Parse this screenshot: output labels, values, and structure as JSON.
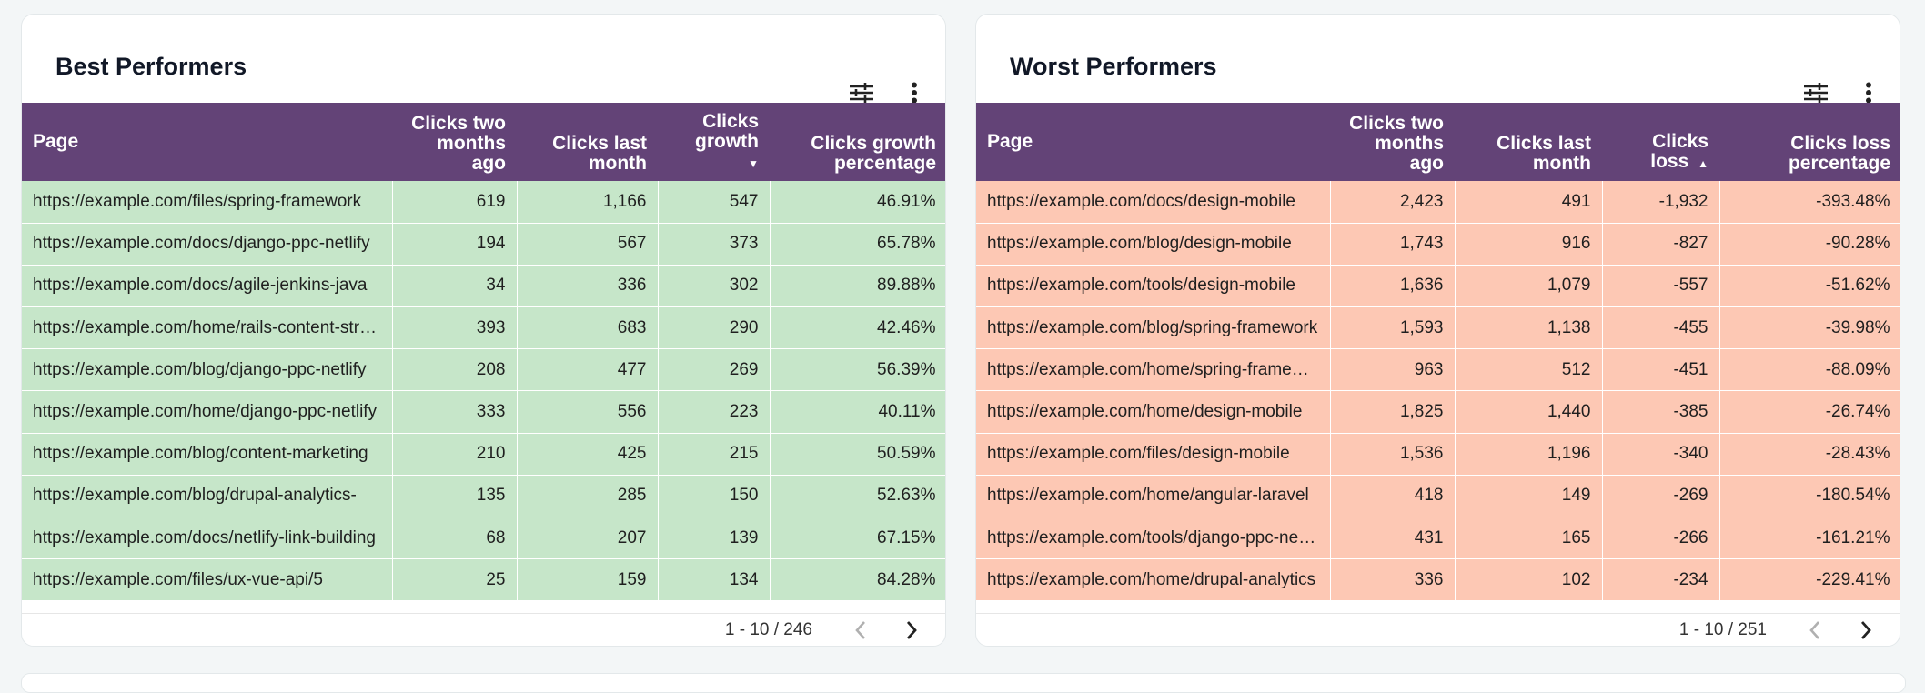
{
  "best": {
    "title": "Best Performers",
    "columns": [
      "Page",
      "Clicks two months ago",
      "Clicks last month",
      "Clicks growth",
      "Clicks growth percentage"
    ],
    "sort_indicator": "▼",
    "rows": [
      [
        "https://example.com/files/spring-framework",
        "619",
        "1,166",
        "547",
        "46.91%"
      ],
      [
        "https://example.com/docs/django-ppc-netlify",
        "194",
        "567",
        "373",
        "65.78%"
      ],
      [
        "https://example.com/docs/agile-jenkins-java",
        "34",
        "336",
        "302",
        "89.88%"
      ],
      [
        "https://example.com/home/rails-content-strategy",
        "393",
        "683",
        "290",
        "42.46%"
      ],
      [
        "https://example.com/blog/django-ppc-netlify",
        "208",
        "477",
        "269",
        "56.39%"
      ],
      [
        "https://example.com/home/django-ppc-netlify",
        "333",
        "556",
        "223",
        "40.11%"
      ],
      [
        "https://example.com/blog/content-marketing",
        "210",
        "425",
        "215",
        "50.59%"
      ],
      [
        "https://example.com/blog/drupal-analytics-",
        "135",
        "285",
        "150",
        "52.63%"
      ],
      [
        "https://example.com/docs/netlify-link-building",
        "68",
        "207",
        "139",
        "67.15%"
      ],
      [
        "https://example.com/files/ux-vue-api/5",
        "25",
        "159",
        "134",
        "84.28%"
      ]
    ],
    "pagination": "1 - 10 / 246"
  },
  "worst": {
    "title": "Worst Performers",
    "columns": [
      "Page",
      "Clicks two months ago",
      "Clicks last month",
      "Clicks loss",
      "Clicks loss percentage"
    ],
    "sort_indicator": "▲",
    "rows": [
      [
        "https://example.com/docs/design-mobile",
        "2,423",
        "491",
        "-1,932",
        "-393.48%"
      ],
      [
        "https://example.com/blog/design-mobile",
        "1,743",
        "916",
        "-827",
        "-90.28%"
      ],
      [
        "https://example.com/tools/design-mobile",
        "1,636",
        "1,079",
        "-557",
        "-51.62%"
      ],
      [
        "https://example.com/blog/spring-framework",
        "1,593",
        "1,138",
        "-455",
        "-39.98%"
      ],
      [
        "https://example.com/home/spring-framework",
        "963",
        "512",
        "-451",
        "-88.09%"
      ],
      [
        "https://example.com/home/design-mobile",
        "1,825",
        "1,440",
        "-385",
        "-26.74%"
      ],
      [
        "https://example.com/files/design-mobile",
        "1,536",
        "1,196",
        "-340",
        "-28.43%"
      ],
      [
        "https://example.com/home/angular-laravel",
        "418",
        "149",
        "-269",
        "-180.54%"
      ],
      [
        "https://example.com/tools/django-ppc-netlify",
        "431",
        "165",
        "-266",
        "-161.21%"
      ],
      [
        "https://example.com/home/drupal-analytics",
        "336",
        "102",
        "-234",
        "-229.41%"
      ]
    ],
    "pagination": "1 - 10 / 251"
  },
  "icons": {
    "filter": "sliders-icon",
    "more": "more-vert-icon",
    "prev": "chevron-left-icon",
    "next": "chevron-right-icon"
  },
  "colors": {
    "header": "#634377",
    "positive_cell": "#c6e6c9",
    "negative_cell": "#fdc8b4"
  }
}
